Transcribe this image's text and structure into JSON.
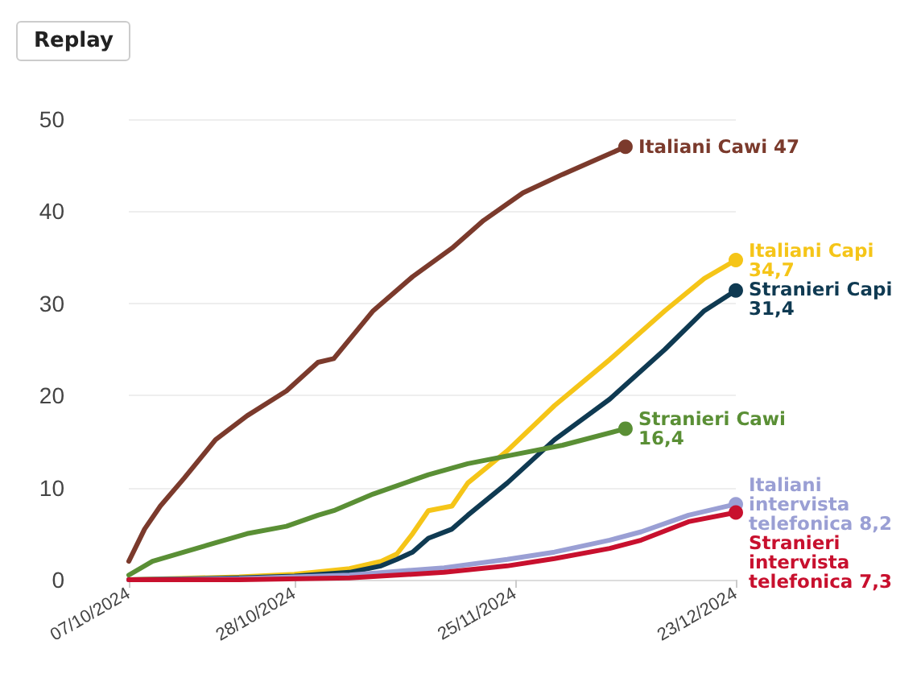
{
  "chart_data": {
    "type": "line",
    "annotations": [
      "Replay"
    ],
    "xlim": [
      "2024-10-07",
      "2024-12-23"
    ],
    "xticks": [
      {
        "value": "2024-10-07",
        "label": "07/10/2024"
      },
      {
        "value": "2024-10-28",
        "label": "28/10/2024"
      },
      {
        "value": "2024-11-25",
        "label": "25/11/2024"
      },
      {
        "value": "2024-12-23",
        "label": "23/12/2024"
      }
    ],
    "ylim": [
      0,
      50
    ],
    "yticks": [
      0,
      10,
      20,
      30,
      40,
      50
    ],
    "grid": "y",
    "legend": false,
    "line_style": "solid",
    "series": [
      {
        "name": "Italiani Cawi",
        "color": "#7b3a2c",
        "x": [
          "2024-10-07",
          "2024-10-09",
          "2024-10-11",
          "2024-10-14",
          "2024-10-18",
          "2024-10-22",
          "2024-10-27",
          "2024-10-31",
          "2024-11-02",
          "2024-11-07",
          "2024-11-12",
          "2024-11-17",
          "2024-11-21",
          "2024-11-26",
          "2024-12-01",
          "2024-12-05",
          "2024-12-09"
        ],
        "values": [
          2,
          5.5,
          8,
          11,
          15.2,
          17.8,
          20.5,
          23.6,
          24,
          29.2,
          32.9,
          36,
          39,
          42,
          44,
          45.5,
          47
        ],
        "value_labels": [
          null,
          null,
          null,
          null,
          null,
          null,
          null,
          null,
          null,
          null,
          null,
          null,
          null,
          null,
          null,
          null,
          "47"
        ]
      },
      {
        "name": "Italiani Capi",
        "color": "#f5c518",
        "x": [
          "2024-10-07",
          "2024-10-21",
          "2024-10-28",
          "2024-11-04",
          "2024-11-08",
          "2024-11-10",
          "2024-11-12",
          "2024-11-14",
          "2024-11-17",
          "2024-11-19",
          "2024-11-24",
          "2024-11-30",
          "2024-12-07",
          "2024-12-14",
          "2024-12-19",
          "2024-12-23"
        ],
        "values": [
          0,
          0.3,
          0.6,
          1.2,
          2,
          2.8,
          5,
          7.5,
          8,
          10.5,
          14,
          18.9,
          23.9,
          29.2,
          32.7,
          34.7
        ],
        "value_labels": [
          null,
          null,
          null,
          null,
          null,
          null,
          null,
          null,
          null,
          null,
          null,
          null,
          null,
          null,
          null,
          "34,7"
        ]
      },
      {
        "name": "Stranieri Capi",
        "color": "#0f3a52",
        "x": [
          "2024-10-07",
          "2024-10-21",
          "2024-10-28",
          "2024-11-04",
          "2024-11-08",
          "2024-11-10",
          "2024-11-12",
          "2024-11-14",
          "2024-11-17",
          "2024-11-19",
          "2024-11-24",
          "2024-11-30",
          "2024-12-07",
          "2024-12-14",
          "2024-12-19",
          "2024-12-23"
        ],
        "values": [
          0,
          0.2,
          0.4,
          0.8,
          1.5,
          2.2,
          3,
          4.5,
          5.5,
          7,
          10.5,
          15.2,
          19.6,
          25,
          29.2,
          31.4
        ],
        "value_labels": [
          null,
          null,
          null,
          null,
          null,
          null,
          null,
          null,
          null,
          null,
          null,
          null,
          null,
          null,
          null,
          "31,4"
        ]
      },
      {
        "name": "Stranieri Cawi",
        "color": "#5a8f35",
        "x": [
          "2024-10-07",
          "2024-10-10",
          "2024-10-14",
          "2024-10-18",
          "2024-10-22",
          "2024-10-27",
          "2024-10-31",
          "2024-11-02",
          "2024-11-07",
          "2024-11-14",
          "2024-11-19",
          "2024-11-25",
          "2024-12-01",
          "2024-12-09"
        ],
        "values": [
          0.5,
          2,
          3,
          4,
          5,
          5.8,
          7,
          7.5,
          9.3,
          11.4,
          12.6,
          13.6,
          14.6,
          16.4
        ],
        "value_labels": [
          null,
          null,
          null,
          null,
          null,
          null,
          null,
          null,
          null,
          null,
          null,
          null,
          null,
          "16,4"
        ]
      },
      {
        "name": "Italiani intervista telefonica",
        "color": "#9a9fd4",
        "x": [
          "2024-10-07",
          "2024-10-21",
          "2024-11-04",
          "2024-11-16",
          "2024-11-24",
          "2024-11-30",
          "2024-12-07",
          "2024-12-11",
          "2024-12-17",
          "2024-12-23"
        ],
        "values": [
          0,
          0.1,
          0.5,
          1.3,
          2.2,
          3,
          4.3,
          5.2,
          7,
          8.2
        ],
        "value_labels": [
          null,
          null,
          null,
          null,
          null,
          null,
          null,
          null,
          null,
          "8,2"
        ]
      },
      {
        "name": "Stranieri intervista telefonica",
        "color": "#c8102e",
        "x": [
          "2024-10-07",
          "2024-10-21",
          "2024-11-04",
          "2024-11-16",
          "2024-11-24",
          "2024-11-30",
          "2024-12-07",
          "2024-12-11",
          "2024-12-17",
          "2024-12-23"
        ],
        "values": [
          0,
          0,
          0.2,
          0.8,
          1.5,
          2.3,
          3.4,
          4.3,
          6.3,
          7.3
        ],
        "value_labels": [
          null,
          null,
          null,
          null,
          null,
          null,
          null,
          null,
          null,
          "7,3"
        ]
      }
    ]
  }
}
